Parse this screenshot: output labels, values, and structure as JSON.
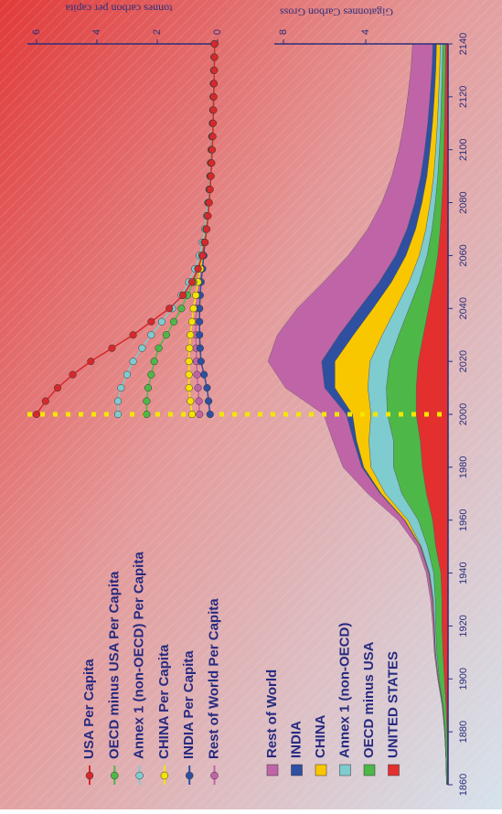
{
  "chart_data": [
    {
      "type": "stacked-area",
      "y_label": "Gigatonnes Carbon Gross",
      "x": [
        1860,
        1870,
        1880,
        1890,
        1900,
        1910,
        1920,
        1930,
        1940,
        1950,
        1960,
        1970,
        1980,
        1990,
        2000,
        2010,
        2020,
        2030,
        2040,
        2050,
        2060,
        2070,
        2080,
        2090,
        2100,
        2110,
        2120,
        2130,
        2140
      ],
      "xlim": [
        1860,
        2140
      ],
      "xticks": [
        1860,
        1880,
        1900,
        1920,
        1940,
        1960,
        1980,
        2000,
        2020,
        2040,
        2060,
        2080,
        2100,
        2120,
        2140
      ],
      "ylim": [
        0,
        12
      ],
      "yticks": [
        4,
        8
      ],
      "vline": 2000,
      "vline_color": "#f4e600",
      "series": [
        {
          "name": "UNITED STATES",
          "color": "#e3302f",
          "values": [
            0.02,
            0.03,
            0.05,
            0.1,
            0.18,
            0.25,
            0.3,
            0.3,
            0.35,
            0.6,
            0.75,
            1.05,
            1.25,
            1.35,
            1.55,
            1.55,
            1.45,
            1.2,
            0.95,
            0.7,
            0.5,
            0.38,
            0.3,
            0.24,
            0.2,
            0.17,
            0.15,
            0.13,
            0.12
          ]
        },
        {
          "name": "OECD minus USA",
          "color": "#4db848",
          "values": [
            0.05,
            0.07,
            0.1,
            0.15,
            0.25,
            0.3,
            0.3,
            0.32,
            0.35,
            0.4,
            0.7,
            1.2,
            1.4,
            1.3,
            1.4,
            1.45,
            1.4,
            1.2,
            0.95,
            0.7,
            0.52,
            0.4,
            0.32,
            0.26,
            0.22,
            0.19,
            0.17,
            0.15,
            0.14
          ]
        },
        {
          "name": "Annex 1 (non-OECD)",
          "color": "#7ecbd0",
          "values": [
            0,
            0,
            0.01,
            0.02,
            0.04,
            0.06,
            0.06,
            0.1,
            0.2,
            0.3,
            0.5,
            0.8,
            1.1,
            1.2,
            0.8,
            0.9,
            0.95,
            0.8,
            0.65,
            0.5,
            0.38,
            0.3,
            0.25,
            0.2,
            0.18,
            0.16,
            0.14,
            0.13,
            0.12
          ]
        },
        {
          "name": "CHINA",
          "color": "#f8c700",
          "values": [
            0,
            0,
            0,
            0,
            0,
            0.01,
            0.01,
            0.02,
            0.02,
            0.03,
            0.15,
            0.2,
            0.35,
            0.6,
            0.9,
            1.6,
            1.7,
            1.4,
            1.1,
            0.85,
            0.65,
            0.5,
            0.4,
            0.33,
            0.28,
            0.24,
            0.21,
            0.19,
            0.18
          ]
        },
        {
          "name": "INDIA",
          "color": "#2f4fa0",
          "values": [
            0,
            0,
            0,
            0,
            0.005,
            0.01,
            0.01,
            0.01,
            0.02,
            0.02,
            0.03,
            0.05,
            0.1,
            0.15,
            0.3,
            0.5,
            0.65,
            0.7,
            0.68,
            0.6,
            0.5,
            0.42,
            0.35,
            0.3,
            0.26,
            0.23,
            0.21,
            0.19,
            0.18
          ]
        },
        {
          "name": "Rest of World",
          "color": "#c064a8",
          "values": [
            0,
            0,
            0.01,
            0.02,
            0.03,
            0.04,
            0.06,
            0.1,
            0.12,
            0.15,
            0.3,
            0.6,
            0.9,
            1.0,
            1.1,
            1.9,
            2.6,
            3.0,
            3.0,
            2.7,
            2.3,
            1.9,
            1.6,
            1.4,
            1.25,
            1.15,
            1.08,
            1.02,
            0.98
          ]
        }
      ]
    },
    {
      "type": "line",
      "y_label": "tonnes carbon per capita",
      "x": [
        2000,
        2005,
        2010,
        2015,
        2020,
        2025,
        2030,
        2035,
        2040,
        2045,
        2050,
        2055,
        2060,
        2065,
        2070,
        2075,
        2080,
        2085,
        2090,
        2095,
        2100,
        2105,
        2110,
        2115,
        2120,
        2125,
        2130,
        2135,
        2140
      ],
      "ylim": [
        0,
        6.3
      ],
      "yticks": [
        0,
        2,
        4,
        6
      ],
      "series": [
        {
          "name": "USA Per Capita",
          "color": "#d7282b",
          "values": [
            6.0,
            5.7,
            5.3,
            4.8,
            4.2,
            3.5,
            2.8,
            2.2,
            1.6,
            1.15,
            0.85,
            0.65,
            0.5,
            0.42,
            0.36,
            0.32,
            0.28,
            0.25,
            0.22,
            0.2,
            0.18,
            0.16,
            0.15,
            0.14,
            0.13,
            0.12,
            0.11,
            0.105,
            0.1
          ]
        },
        {
          "name": "OECD minus USA Per Capita",
          "color": "#4db848",
          "values": [
            2.35,
            2.35,
            2.3,
            2.2,
            2.1,
            1.95,
            1.7,
            1.45,
            1.2,
            1.0,
            0.8,
            0.65,
            0.52,
            0.44,
            0.38,
            0.33,
            0.29,
            0.26,
            0.23,
            0.21,
            0.19,
            0.17,
            0.155,
            0.145,
            0.135,
            0.125,
            0.115,
            0.108,
            0.1
          ]
        },
        {
          "name": "Annex 1 (non-OECD) Per Capita",
          "color": "#7ecbd0",
          "values": [
            3.3,
            3.3,
            3.2,
            3.0,
            2.8,
            2.5,
            2.2,
            1.85,
            1.5,
            1.2,
            0.95,
            0.75,
            0.6,
            0.5,
            0.42,
            0.36,
            0.31,
            0.27,
            0.24,
            0.22,
            0.2,
            0.18,
            0.16,
            0.15,
            0.14,
            0.13,
            0.12,
            0.11,
            0.1
          ]
        },
        {
          "name": "CHINA Per Capita",
          "color": "#f6e200",
          "values": [
            0.85,
            0.9,
            0.95,
            0.95,
            0.95,
            0.93,
            0.9,
            0.85,
            0.8,
            0.72,
            0.65,
            0.57,
            0.5,
            0.44,
            0.39,
            0.34,
            0.3,
            0.27,
            0.24,
            0.22,
            0.2,
            0.18,
            0.16,
            0.15,
            0.14,
            0.13,
            0.12,
            0.11,
            0.1
          ]
        },
        {
          "name": "INDIA Per Capita",
          "color": "#2f4fa0",
          "values": [
            0.25,
            0.3,
            0.35,
            0.45,
            0.55,
            0.58,
            0.6,
            0.6,
            0.6,
            0.58,
            0.55,
            0.5,
            0.46,
            0.42,
            0.38,
            0.34,
            0.3,
            0.27,
            0.24,
            0.22,
            0.2,
            0.18,
            0.16,
            0.15,
            0.14,
            0.13,
            0.12,
            0.11,
            0.1
          ]
        },
        {
          "name": "Rest of World Per Capita",
          "color": "#c064a8",
          "values": [
            0.6,
            0.62,
            0.65,
            0.68,
            0.7,
            0.71,
            0.72,
            0.72,
            0.7,
            0.66,
            0.6,
            0.55,
            0.5,
            0.45,
            0.4,
            0.36,
            0.32,
            0.28,
            0.25,
            0.23,
            0.21,
            0.19,
            0.17,
            0.155,
            0.145,
            0.135,
            0.125,
            0.115,
            0.105
          ]
        }
      ]
    }
  ]
}
